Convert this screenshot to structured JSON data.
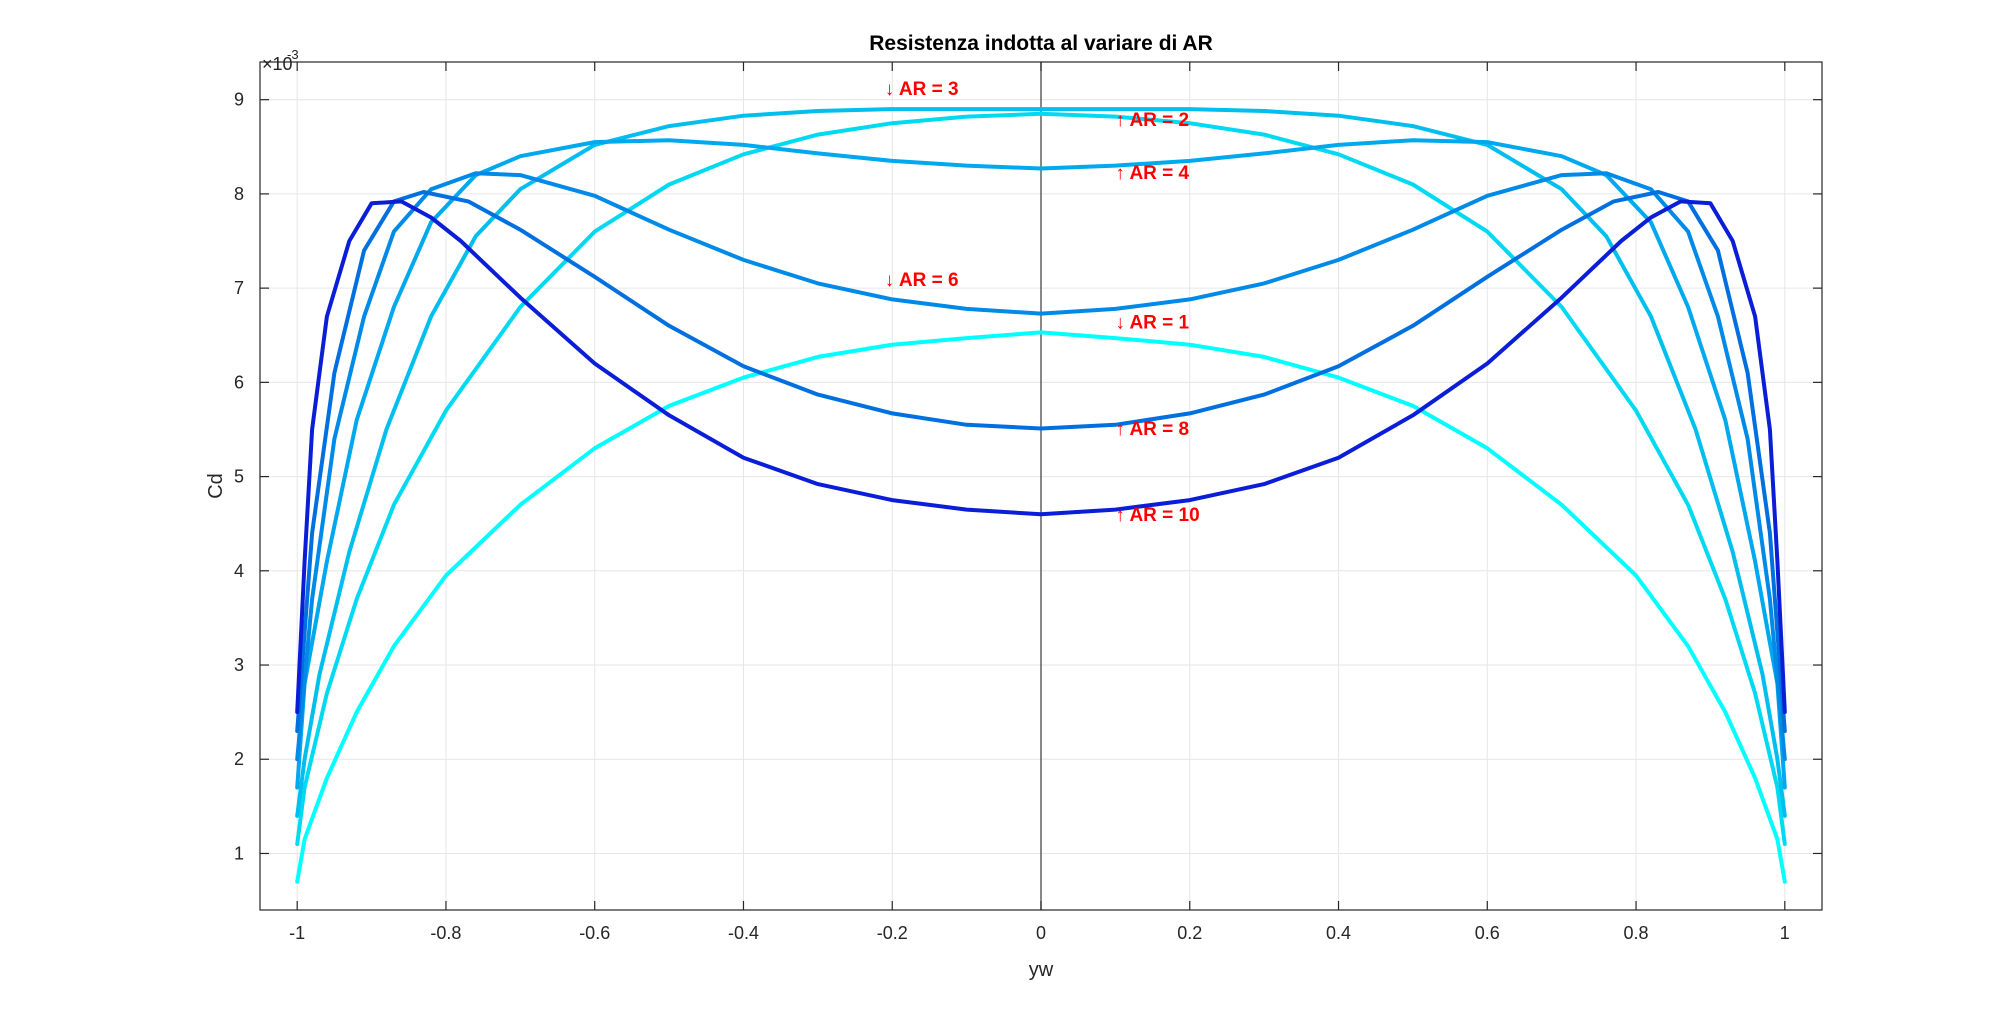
{
  "chart_data": {
    "type": "line",
    "title": "Resistenza indotta al variare di AR",
    "xlabel": "yw",
    "ylabel": "Cd",
    "y_exponent": {
      "base": "×10",
      "power": "-3"
    },
    "xlim": [
      -1.05,
      1.05
    ],
    "ylim": [
      0.4,
      9.4
    ],
    "xticks": [
      -1,
      -0.8,
      -0.6,
      -0.4,
      -0.2,
      0,
      0.2,
      0.4,
      0.6,
      0.8,
      1
    ],
    "xtick_labels": [
      "-1",
      "-0.8",
      "-0.6",
      "-0.4",
      "-0.2",
      "0",
      "0.2",
      "0.4",
      "0.6",
      "0.8",
      "1"
    ],
    "yticks": [
      1,
      2,
      3,
      4,
      5,
      6,
      7,
      8,
      9
    ],
    "ytick_labels": [
      "1",
      "2",
      "3",
      "4",
      "5",
      "6",
      "7",
      "8",
      "9"
    ],
    "grid": true,
    "reference_line_x": 0,
    "series": [
      {
        "color": "#00ffff",
        "points": [
          [
            0,
            6.53
          ],
          [
            0.1,
            6.47
          ],
          [
            0.2,
            6.4
          ],
          [
            0.3,
            6.27
          ],
          [
            0.4,
            6.05
          ],
          [
            0.5,
            5.75
          ],
          [
            0.6,
            5.3
          ],
          [
            0.7,
            4.7
          ],
          [
            0.8,
            3.95
          ],
          [
            0.87,
            3.2
          ],
          [
            0.92,
            2.5
          ],
          [
            0.96,
            1.8
          ],
          [
            0.99,
            1.15
          ],
          [
            1,
            0.7
          ]
        ]
      },
      {
        "color": "#00d9f2",
        "points": [
          [
            0,
            8.85
          ],
          [
            0.1,
            8.82
          ],
          [
            0.2,
            8.75
          ],
          [
            0.3,
            8.63
          ],
          [
            0.4,
            8.42
          ],
          [
            0.5,
            8.1
          ],
          [
            0.6,
            7.6
          ],
          [
            0.7,
            6.8
          ],
          [
            0.8,
            5.7
          ],
          [
            0.87,
            4.7
          ],
          [
            0.92,
            3.7
          ],
          [
            0.96,
            2.7
          ],
          [
            0.99,
            1.7
          ],
          [
            1,
            1.1
          ]
        ]
      },
      {
        "color": "#00bfee",
        "points": [
          [
            0,
            8.9
          ],
          [
            0.1,
            8.9
          ],
          [
            0.2,
            8.9
          ],
          [
            0.3,
            8.88
          ],
          [
            0.4,
            8.83
          ],
          [
            0.5,
            8.72
          ],
          [
            0.6,
            8.52
          ],
          [
            0.7,
            8.05
          ],
          [
            0.76,
            7.55
          ],
          [
            0.82,
            6.7
          ],
          [
            0.88,
            5.5
          ],
          [
            0.93,
            4.2
          ],
          [
            0.97,
            2.9
          ],
          [
            0.99,
            2.0
          ],
          [
            1,
            1.4
          ]
        ]
      },
      {
        "color": "#00a8ed",
        "points": [
          [
            0,
            8.27
          ],
          [
            0.1,
            8.3
          ],
          [
            0.2,
            8.35
          ],
          [
            0.3,
            8.43
          ],
          [
            0.4,
            8.52
          ],
          [
            0.5,
            8.57
          ],
          [
            0.6,
            8.55
          ],
          [
            0.7,
            8.4
          ],
          [
            0.76,
            8.2
          ],
          [
            0.82,
            7.7
          ],
          [
            0.87,
            6.8
          ],
          [
            0.92,
            5.6
          ],
          [
            0.96,
            4.1
          ],
          [
            0.99,
            2.8
          ],
          [
            1,
            1.7
          ]
        ]
      },
      {
        "color": "#008ae8",
        "points": [
          [
            0,
            6.73
          ],
          [
            0.1,
            6.78
          ],
          [
            0.2,
            6.88
          ],
          [
            0.3,
            7.05
          ],
          [
            0.4,
            7.3
          ],
          [
            0.5,
            7.62
          ],
          [
            0.6,
            7.98
          ],
          [
            0.7,
            8.2
          ],
          [
            0.76,
            8.22
          ],
          [
            0.82,
            8.05
          ],
          [
            0.87,
            7.6
          ],
          [
            0.91,
            6.7
          ],
          [
            0.95,
            5.4
          ],
          [
            0.98,
            3.7
          ],
          [
            1,
            2.0
          ]
        ]
      },
      {
        "color": "#0070e0",
        "points": [
          [
            0,
            5.51
          ],
          [
            0.1,
            5.55
          ],
          [
            0.2,
            5.67
          ],
          [
            0.3,
            5.87
          ],
          [
            0.4,
            6.17
          ],
          [
            0.5,
            6.6
          ],
          [
            0.6,
            7.12
          ],
          [
            0.7,
            7.62
          ],
          [
            0.77,
            7.92
          ],
          [
            0.83,
            8.02
          ],
          [
            0.87,
            7.92
          ],
          [
            0.91,
            7.4
          ],
          [
            0.95,
            6.1
          ],
          [
            0.98,
            4.4
          ],
          [
            1,
            2.3
          ]
        ]
      },
      {
        "color": "#0a1ed8",
        "points": [
          [
            0,
            4.6
          ],
          [
            0.1,
            4.65
          ],
          [
            0.2,
            4.75
          ],
          [
            0.3,
            4.92
          ],
          [
            0.4,
            5.2
          ],
          [
            0.5,
            5.65
          ],
          [
            0.6,
            6.2
          ],
          [
            0.7,
            6.9
          ],
          [
            0.78,
            7.5
          ],
          [
            0.82,
            7.75
          ],
          [
            0.86,
            7.92
          ],
          [
            0.9,
            7.9
          ],
          [
            0.93,
            7.5
          ],
          [
            0.96,
            6.7
          ],
          [
            0.98,
            5.5
          ],
          [
            0.99,
            4.1
          ],
          [
            1,
            2.5
          ]
        ]
      }
    ],
    "annotations": [
      {
        "text": "↓ AR = 3",
        "x": -0.21,
        "y": 9.05,
        "color": "#ff0000"
      },
      {
        "text": "↑ AR = 2",
        "x": 0.1,
        "y": 8.72,
        "color": "#ff0000"
      },
      {
        "text": "↑ AR = 4",
        "x": 0.1,
        "y": 8.16,
        "color": "#ff0000"
      },
      {
        "text": "↓ AR = 6",
        "x": -0.21,
        "y": 7.02,
        "color": "#ff0000"
      },
      {
        "text": "↓ AR = 1",
        "x": 0.1,
        "y": 6.57,
        "color": "#ff0000"
      },
      {
        "text": "↑ AR = 8",
        "x": 0.1,
        "y": 5.44,
        "color": "#ff0000"
      },
      {
        "text": "↑ AR = 10",
        "x": 0.1,
        "y": 4.53,
        "color": "#ff0000"
      }
    ],
    "colors": {
      "axis": "#262626",
      "grid": "#e6e6e6",
      "reference_line": "#555555"
    }
  }
}
